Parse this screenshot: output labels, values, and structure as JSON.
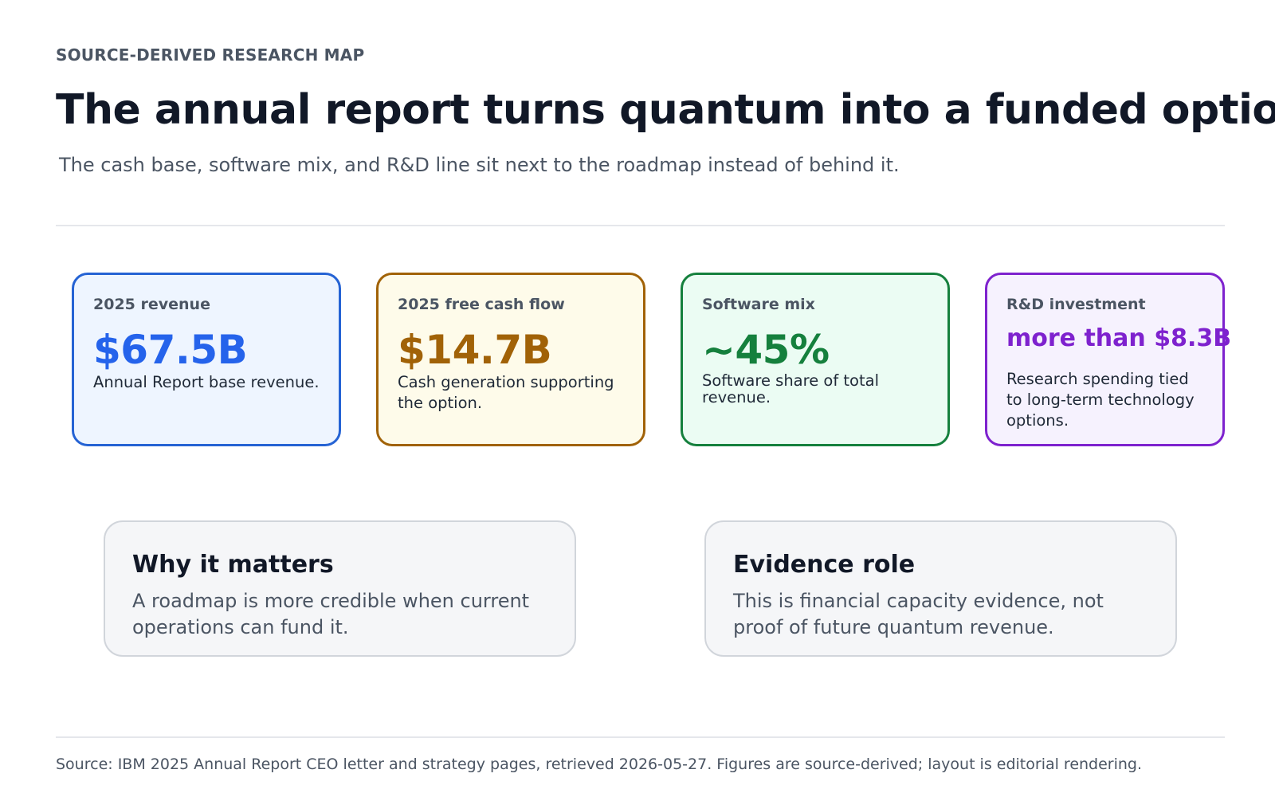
{
  "header": {
    "eyebrow": "SOURCE-DERIVED RESEARCH MAP",
    "title": "The annual report turns quantum into a funded option",
    "subtitle": "The cash base, software mix, and R&D line sit next to the roadmap instead of behind it."
  },
  "metrics": [
    {
      "label": "2025 revenue",
      "value": "$67.5B",
      "description": "Annual Report base revenue.",
      "color": "#2563eb"
    },
    {
      "label": "2025 free cash flow",
      "value": "$14.7B",
      "description": "Cash generation supporting the option.",
      "color": "#a16207"
    },
    {
      "label": "Software mix",
      "value": "~45%",
      "description": "Software share of total revenue.",
      "color": "#15803d"
    },
    {
      "label": "R&D investment",
      "value": "more than $8.3B",
      "description": "Research spending tied to long-term technology options.",
      "color": "#7e22ce"
    }
  ],
  "notes": [
    {
      "title": "Why it matters",
      "body": "A roadmap is more credible when current operations can fund it."
    },
    {
      "title": "Evidence role",
      "body": "This is financial capacity evidence, not proof of future quantum revenue."
    }
  ],
  "footer": {
    "source": "Source: IBM 2025 Annual Report CEO letter and strategy pages, retrieved 2026-05-27. Figures are source-derived; layout is editorial rendering."
  }
}
